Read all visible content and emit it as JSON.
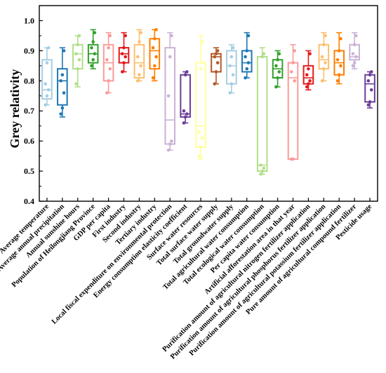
{
  "chart_data": {
    "type": "box",
    "ylabel": "Grey relativity",
    "xlabel": "",
    "title": "",
    "ylim": [
      0.4,
      1.05
    ],
    "yticks": [
      "0.4",
      "0.5",
      "0.6",
      "0.7",
      "0.8",
      "0.9",
      "1.0"
    ],
    "grid": false,
    "series": [
      {
        "category": "Average temperature",
        "color": "#a6cee3",
        "min": 0.72,
        "q1": 0.74,
        "median": 0.77,
        "q3": 0.87,
        "max": 0.91,
        "points": [
          0.72,
          0.75,
          0.77,
          0.79,
          0.86,
          0.91
        ]
      },
      {
        "category": "Average annual precipitation",
        "color": "#1f78b4",
        "min": 0.68,
        "q1": 0.72,
        "median": 0.8,
        "q3": 0.84,
        "max": 0.91,
        "points": [
          0.69,
          0.71,
          0.76,
          0.8,
          0.82,
          0.9
        ]
      },
      {
        "category": "Annual sunshine hours",
        "color": "#b2df8a",
        "min": 0.78,
        "q1": 0.84,
        "median": 0.89,
        "q3": 0.92,
        "max": 0.95,
        "points": [
          0.79,
          0.84,
          0.87,
          0.89,
          0.92,
          0.95
        ]
      },
      {
        "category": "Population of Heilongjiang Province",
        "color": "#33a02c",
        "min": 0.84,
        "q1": 0.86,
        "median": 0.89,
        "q3": 0.92,
        "max": 0.97,
        "points": [
          0.85,
          0.87,
          0.89,
          0.91,
          0.93,
          0.96
        ]
      },
      {
        "category": "GDP per capita",
        "color": "#fb9a99",
        "min": 0.76,
        "q1": 0.8,
        "median": 0.86,
        "q3": 0.92,
        "max": 0.96,
        "points": [
          0.76,
          0.8,
          0.84,
          0.87,
          0.91,
          0.95
        ]
      },
      {
        "category": "First industry",
        "color": "#e31a1c",
        "min": 0.83,
        "q1": 0.86,
        "median": 0.89,
        "q3": 0.91,
        "max": 0.96,
        "points": [
          0.83,
          0.86,
          0.88,
          0.89,
          0.91,
          0.95
        ]
      },
      {
        "category": "Second industry",
        "color": "#fdbf6f",
        "min": 0.8,
        "q1": 0.81,
        "median": 0.86,
        "q3": 0.92,
        "max": 0.97,
        "points": [
          0.8,
          0.82,
          0.85,
          0.88,
          0.93,
          0.96
        ]
      },
      {
        "category": "Tertiary industry",
        "color": "#ff7f00",
        "min": 0.8,
        "q1": 0.84,
        "median": 0.9,
        "q3": 0.94,
        "max": 0.97,
        "points": [
          0.81,
          0.85,
          0.88,
          0.91,
          0.94,
          0.97
        ]
      },
      {
        "category": "Local fiscal expenditure on environmental protection",
        "color": "#cab2d6",
        "min": 0.57,
        "q1": 0.59,
        "median": 0.67,
        "q3": 0.91,
        "max": 0.96,
        "points": [
          0.57,
          0.59,
          0.6,
          0.75,
          0.88,
          0.95
        ]
      },
      {
        "category": "Energy consumption elasticity coefficient",
        "color": "#6a3d9a",
        "min": 0.66,
        "q1": 0.68,
        "median": 0.69,
        "q3": 0.82,
        "max": 0.83,
        "points": [
          0.66,
          0.68,
          0.69,
          0.7,
          0.82,
          0.83
        ]
      },
      {
        "category": "Surface water resources",
        "color": "#ffff99",
        "min": 0.54,
        "q1": 0.58,
        "median": 0.65,
        "q3": 0.86,
        "max": 0.95,
        "points": [
          0.55,
          0.58,
          0.61,
          0.63,
          0.84,
          0.93
        ]
      },
      {
        "category": "Total surface water supply",
        "color": "#b15928",
        "min": 0.79,
        "q1": 0.83,
        "median": 0.88,
        "q3": 0.89,
        "max": 0.91,
        "points": [
          0.79,
          0.83,
          0.86,
          0.88,
          0.89,
          0.9
        ]
      },
      {
        "category": "Total groundwater supply",
        "color": "#a6cee3",
        "min": 0.76,
        "q1": 0.79,
        "median": 0.85,
        "q3": 0.9,
        "max": 0.92,
        "points": [
          0.76,
          0.79,
          0.82,
          0.85,
          0.88,
          0.91
        ]
      },
      {
        "category": "Total agricultural water consumption",
        "color": "#1f78b4",
        "min": 0.81,
        "q1": 0.83,
        "median": 0.86,
        "q3": 0.9,
        "max": 0.96,
        "points": [
          0.81,
          0.84,
          0.86,
          0.88,
          0.9,
          0.95
        ]
      },
      {
        "category": "Total ecological water consumption",
        "color": "#b2df8a",
        "min": 0.49,
        "q1": 0.5,
        "median": 0.52,
        "q3": 0.88,
        "max": 0.91,
        "points": [
          0.49,
          0.5,
          0.51,
          0.52,
          0.88,
          0.89
        ]
      },
      {
        "category": "Per capita water consumption",
        "color": "#33a02c",
        "min": 0.78,
        "q1": 0.81,
        "median": 0.84,
        "q3": 0.87,
        "max": 0.9,
        "points": [
          0.78,
          0.81,
          0.83,
          0.85,
          0.87,
          0.89
        ]
      },
      {
        "category": "Artificial afforestation area in that year",
        "color": "#fb9a99",
        "min": 0.54,
        "q1": 0.54,
        "median": 0.81,
        "q3": 0.86,
        "max": 0.92,
        "points": [
          0.54,
          0.54,
          0.8,
          0.83,
          0.86,
          0.9
        ]
      },
      {
        "category": "Purification amount of agricultural nitrogen fertilizer application",
        "color": "#e31a1c",
        "min": 0.77,
        "q1": 0.79,
        "median": 0.81,
        "q3": 0.85,
        "max": 0.9,
        "points": [
          0.78,
          0.79,
          0.8,
          0.82,
          0.84,
          0.89
        ]
      },
      {
        "category": "Purification amount of agricultural phosphorus fertilizer application",
        "color": "#fdbf6f",
        "min": 0.8,
        "q1": 0.84,
        "median": 0.87,
        "q3": 0.92,
        "max": 0.96,
        "points": [
          0.8,
          0.84,
          0.86,
          0.88,
          0.92,
          0.95
        ]
      },
      {
        "category": "Purification amount of agricultural potassium fertilizer application",
        "color": "#ff7f00",
        "min": 0.79,
        "q1": 0.82,
        "median": 0.86,
        "q3": 0.9,
        "max": 0.96,
        "points": [
          0.8,
          0.82,
          0.85,
          0.87,
          0.9,
          0.94
        ]
      },
      {
        "category": "Pure amount of agricultural compound fertilizer",
        "color": "#cab2d6",
        "min": 0.84,
        "q1": 0.87,
        "median": 0.88,
        "q3": 0.92,
        "max": 0.96,
        "points": [
          0.85,
          0.86,
          0.88,
          0.89,
          0.92,
          0.95
        ]
      },
      {
        "category": "Pesticide usage",
        "color": "#6a3d9a",
        "min": 0.71,
        "q1": 0.73,
        "median": 0.79,
        "q3": 0.82,
        "max": 0.83,
        "points": [
          0.72,
          0.73,
          0.77,
          0.8,
          0.82,
          0.83
        ]
      }
    ]
  }
}
